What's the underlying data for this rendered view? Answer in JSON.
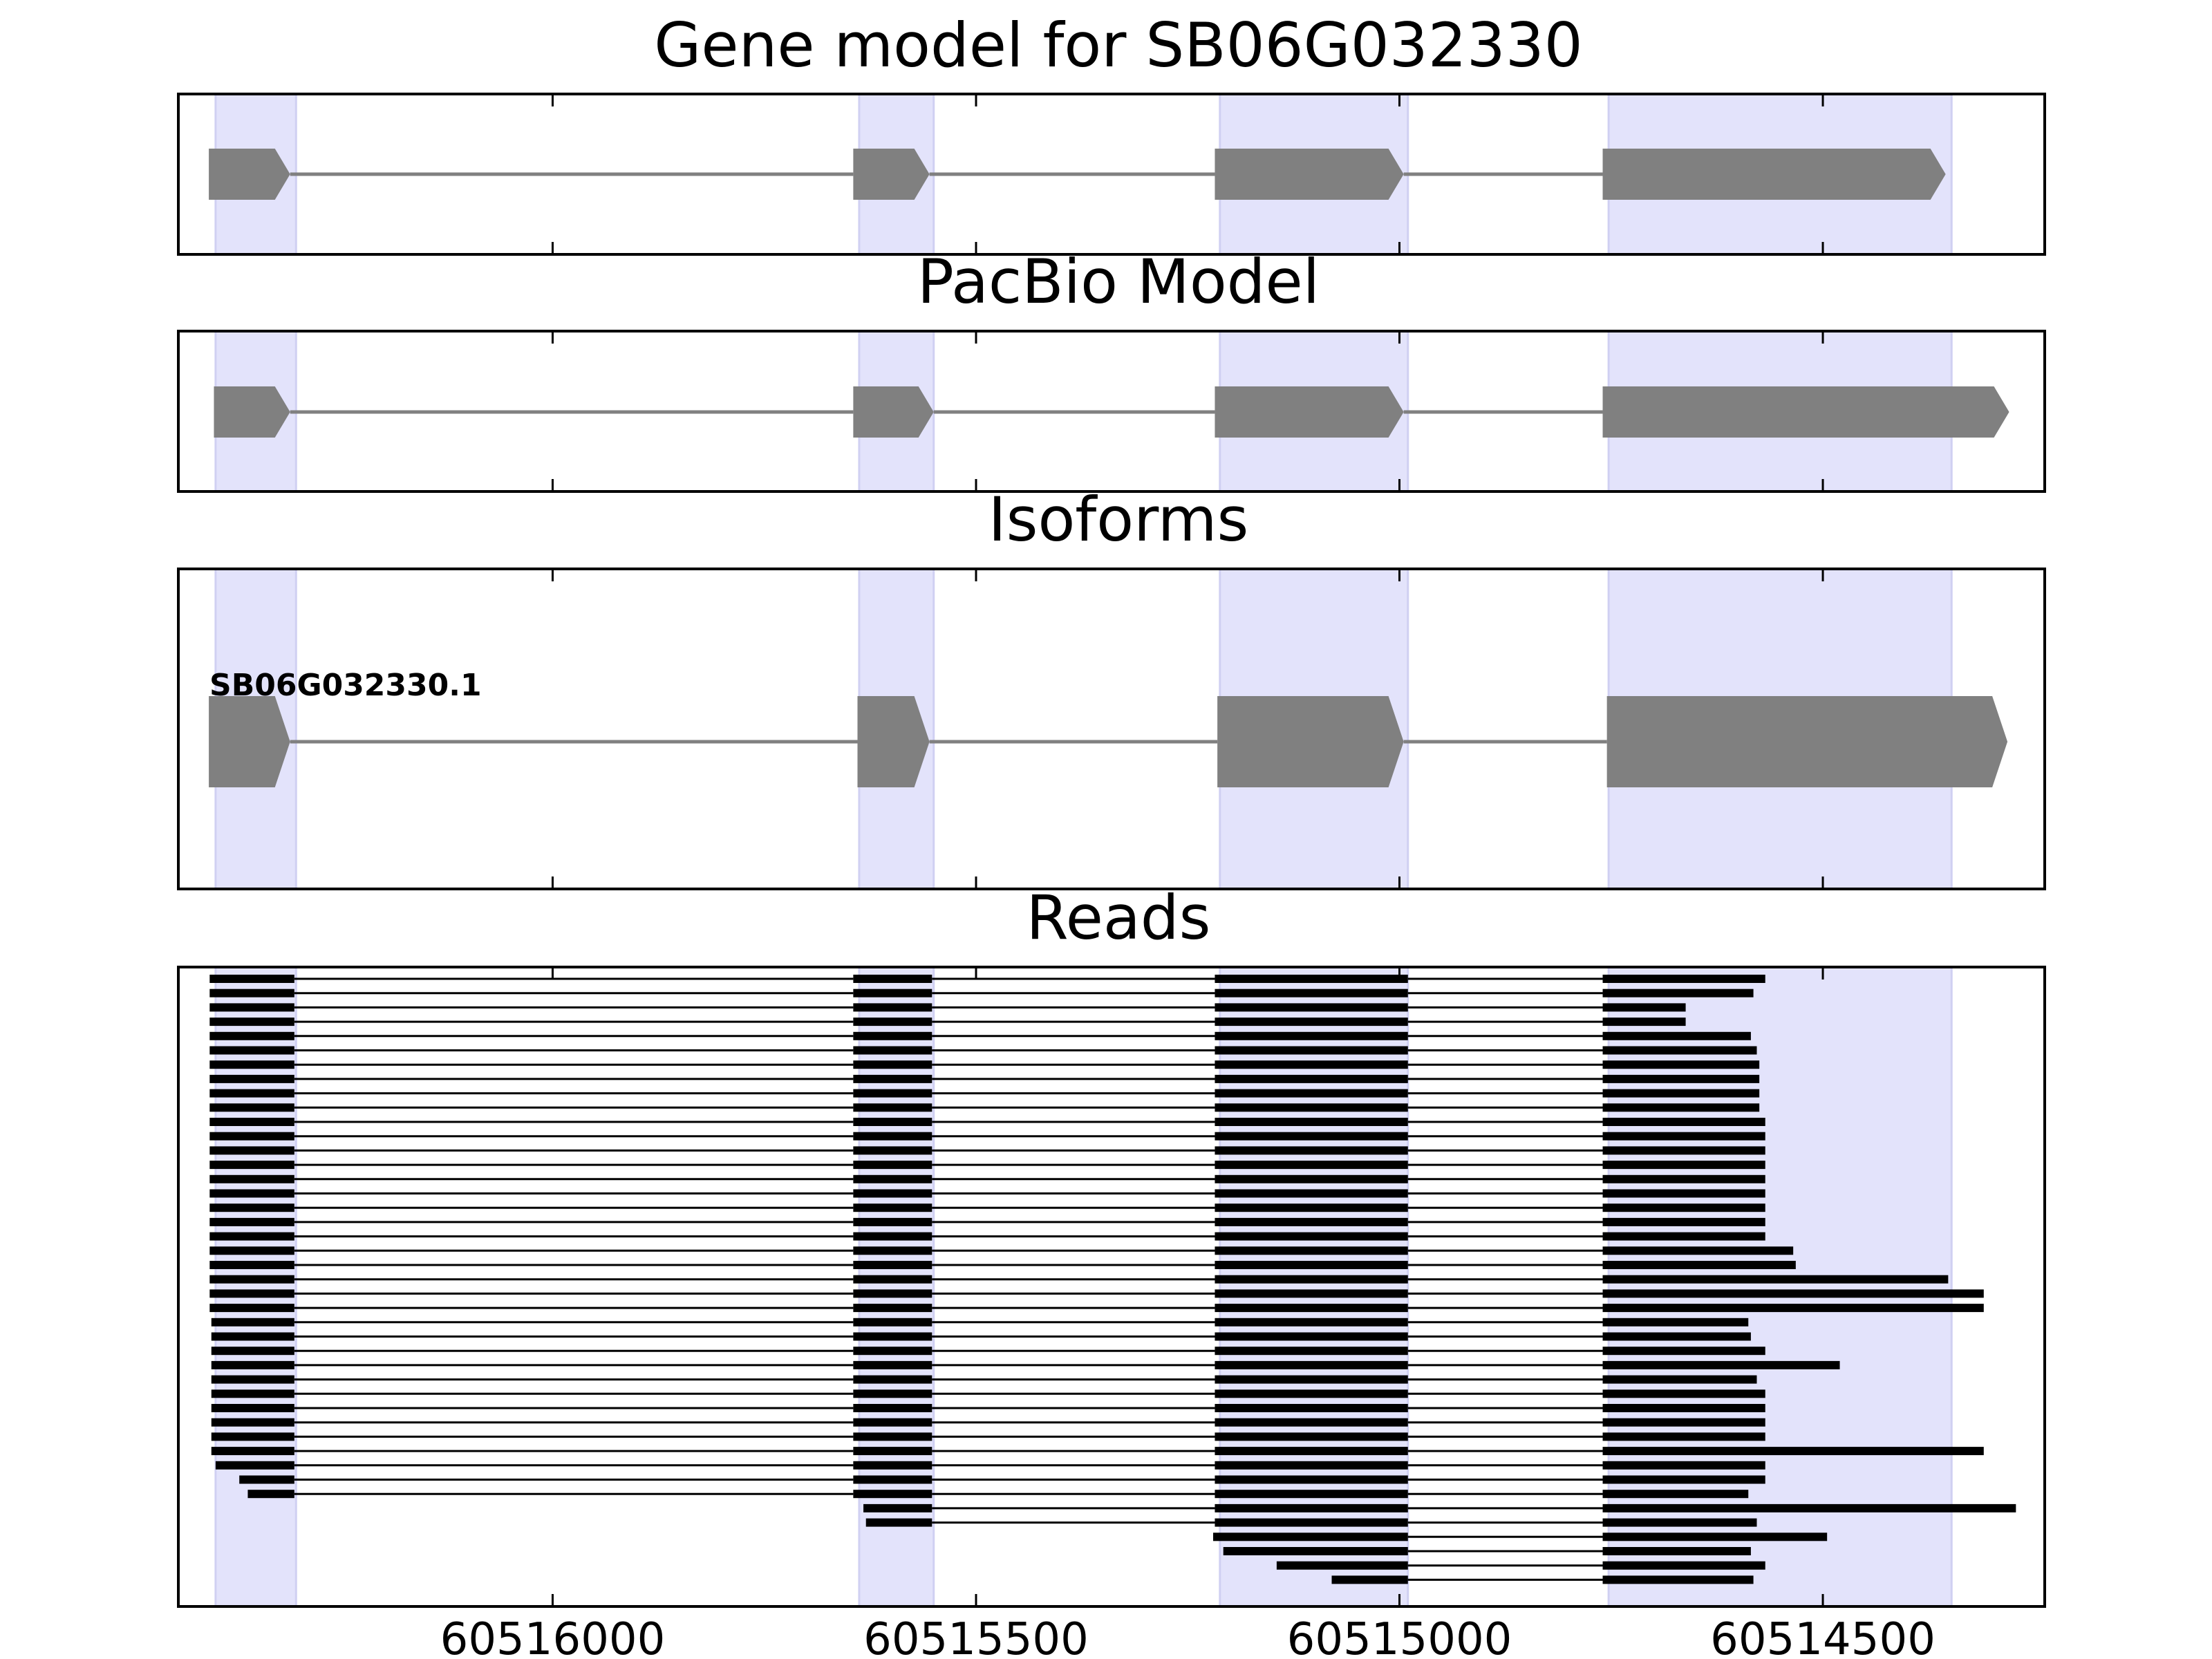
{
  "panels": [
    {
      "title": "Gene model for SB06G032330",
      "track": "gene-model",
      "exons": [
        [
          60516406,
          60516310
        ],
        [
          60515645,
          60515555
        ],
        [
          60515218,
          60514995
        ],
        [
          60514760,
          60514355
        ]
      ]
    },
    {
      "title": "PacBio Model",
      "track": "pacbio-model",
      "exons": [
        [
          60516400,
          60516310
        ],
        [
          60515645,
          60515550
        ],
        [
          60515218,
          60514995
        ],
        [
          60514760,
          60514280
        ]
      ]
    },
    {
      "title": "Isoforms",
      "track": "isoforms",
      "isoform_label": "SB06G032330.1",
      "exons": [
        [
          60516406,
          60516310
        ],
        [
          60515640,
          60515555
        ],
        [
          60515215,
          60514995
        ],
        [
          60514755,
          60514282
        ]
      ]
    },
    {
      "title": "Reads",
      "track": "reads"
    }
  ],
  "highlight_regions": [
    [
      60516398,
      60516303
    ],
    [
      60515638,
      60515550
    ],
    [
      60515212,
      60514990
    ],
    [
      60514753,
      60514348
    ]
  ],
  "x_axis": {
    "range": [
      60516442,
      60514238
    ],
    "tick_values": [
      60516000,
      60515500,
      60515000,
      60514500
    ],
    "tick_labels": [
      "60516000",
      "60515500",
      "60515000",
      "60514500"
    ]
  },
  "reads": [
    {
      "start": 60516405,
      "exon1_end": 60516305,
      "exon2": [
        60515645,
        60515552
      ],
      "exon3": [
        60515218,
        60514990
      ],
      "exon4_start": 60514760,
      "end": 60514568
    },
    {
      "start": 60516405,
      "exon1_end": 60516305,
      "exon2": [
        60515645,
        60515552
      ],
      "exon3": [
        60515218,
        60514990
      ],
      "exon4_start": 60514760,
      "end": 60514582
    },
    {
      "start": 60516405,
      "exon1_end": 60516305,
      "exon2": [
        60515645,
        60515552
      ],
      "exon3": [
        60515218,
        60514990
      ],
      "exon4_start": 60514760,
      "end": 60514662
    },
    {
      "start": 60516405,
      "exon1_end": 60516305,
      "exon2": [
        60515645,
        60515552
      ],
      "exon3": [
        60515218,
        60514990
      ],
      "exon4_start": 60514760,
      "end": 60514662
    },
    {
      "start": 60516405,
      "exon1_end": 60516305,
      "exon2": [
        60515645,
        60515552
      ],
      "exon3": [
        60515218,
        60514990
      ],
      "exon4_start": 60514760,
      "end": 60514585
    },
    {
      "start": 60516405,
      "exon1_end": 60516305,
      "exon2": [
        60515645,
        60515552
      ],
      "exon3": [
        60515218,
        60514990
      ],
      "exon4_start": 60514760,
      "end": 60514578
    },
    {
      "start": 60516405,
      "exon1_end": 60516305,
      "exon2": [
        60515645,
        60515552
      ],
      "exon3": [
        60515218,
        60514990
      ],
      "exon4_start": 60514760,
      "end": 60514575
    },
    {
      "start": 60516405,
      "exon1_end": 60516305,
      "exon2": [
        60515645,
        60515552
      ],
      "exon3": [
        60515218,
        60514990
      ],
      "exon4_start": 60514760,
      "end": 60514575
    },
    {
      "start": 60516405,
      "exon1_end": 60516305,
      "exon2": [
        60515645,
        60515552
      ],
      "exon3": [
        60515218,
        60514990
      ],
      "exon4_start": 60514760,
      "end": 60514575
    },
    {
      "start": 60516405,
      "exon1_end": 60516305,
      "exon2": [
        60515645,
        60515552
      ],
      "exon3": [
        60515218,
        60514990
      ],
      "exon4_start": 60514760,
      "end": 60514575
    },
    {
      "start": 60516405,
      "exon1_end": 60516305,
      "exon2": [
        60515645,
        60515552
      ],
      "exon3": [
        60515218,
        60514990
      ],
      "exon4_start": 60514760,
      "end": 60514568
    },
    {
      "start": 60516405,
      "exon1_end": 60516305,
      "exon2": [
        60515645,
        60515552
      ],
      "exon3": [
        60515218,
        60514990
      ],
      "exon4_start": 60514760,
      "end": 60514568
    },
    {
      "start": 60516405,
      "exon1_end": 60516305,
      "exon2": [
        60515645,
        60515552
      ],
      "exon3": [
        60515218,
        60514990
      ],
      "exon4_start": 60514760,
      "end": 60514568
    },
    {
      "start": 60516405,
      "exon1_end": 60516305,
      "exon2": [
        60515645,
        60515552
      ],
      "exon3": [
        60515218,
        60514990
      ],
      "exon4_start": 60514760,
      "end": 60514568
    },
    {
      "start": 60516405,
      "exon1_end": 60516305,
      "exon2": [
        60515645,
        60515552
      ],
      "exon3": [
        60515218,
        60514990
      ],
      "exon4_start": 60514760,
      "end": 60514568
    },
    {
      "start": 60516405,
      "exon1_end": 60516305,
      "exon2": [
        60515645,
        60515552
      ],
      "exon3": [
        60515218,
        60514990
      ],
      "exon4_start": 60514760,
      "end": 60514568
    },
    {
      "start": 60516405,
      "exon1_end": 60516305,
      "exon2": [
        60515645,
        60515552
      ],
      "exon3": [
        60515218,
        60514990
      ],
      "exon4_start": 60514760,
      "end": 60514568
    },
    {
      "start": 60516405,
      "exon1_end": 60516305,
      "exon2": [
        60515645,
        60515552
      ],
      "exon3": [
        60515218,
        60514990
      ],
      "exon4_start": 60514760,
      "end": 60514568
    },
    {
      "start": 60516405,
      "exon1_end": 60516305,
      "exon2": [
        60515645,
        60515552
      ],
      "exon3": [
        60515218,
        60514990
      ],
      "exon4_start": 60514760,
      "end": 60514568
    },
    {
      "start": 60516405,
      "exon1_end": 60516305,
      "exon2": [
        60515645,
        60515552
      ],
      "exon3": [
        60515218,
        60514990
      ],
      "exon4_start": 60514760,
      "end": 60514535
    },
    {
      "start": 60516405,
      "exon1_end": 60516305,
      "exon2": [
        60515645,
        60515552
      ],
      "exon3": [
        60515218,
        60514990
      ],
      "exon4_start": 60514760,
      "end": 60514532
    },
    {
      "start": 60516405,
      "exon1_end": 60516305,
      "exon2": [
        60515645,
        60515552
      ],
      "exon3": [
        60515218,
        60514990
      ],
      "exon4_start": 60514760,
      "end": 60514352
    },
    {
      "start": 60516405,
      "exon1_end": 60516305,
      "exon2": [
        60515645,
        60515552
      ],
      "exon3": [
        60515218,
        60514990
      ],
      "exon4_start": 60514760,
      "end": 60514310
    },
    {
      "start": 60516405,
      "exon1_end": 60516305,
      "exon2": [
        60515645,
        60515552
      ],
      "exon3": [
        60515218,
        60514990
      ],
      "exon4_start": 60514760,
      "end": 60514310
    },
    {
      "start": 60516403,
      "exon1_end": 60516305,
      "exon2": [
        60515645,
        60515552
      ],
      "exon3": [
        60515218,
        60514990
      ],
      "exon4_start": 60514760,
      "end": 60514588
    },
    {
      "start": 60516403,
      "exon1_end": 60516305,
      "exon2": [
        60515645,
        60515552
      ],
      "exon3": [
        60515218,
        60514990
      ],
      "exon4_start": 60514760,
      "end": 60514585
    },
    {
      "start": 60516403,
      "exon1_end": 60516305,
      "exon2": [
        60515645,
        60515552
      ],
      "exon3": [
        60515218,
        60514990
      ],
      "exon4_start": 60514760,
      "end": 60514568
    },
    {
      "start": 60516403,
      "exon1_end": 60516305,
      "exon2": [
        60515645,
        60515552
      ],
      "exon3": [
        60515218,
        60514990
      ],
      "exon4_start": 60514760,
      "end": 60514480
    },
    {
      "start": 60516403,
      "exon1_end": 60516305,
      "exon2": [
        60515645,
        60515552
      ],
      "exon3": [
        60515218,
        60514990
      ],
      "exon4_start": 60514760,
      "end": 60514578
    },
    {
      "start": 60516403,
      "exon1_end": 60516305,
      "exon2": [
        60515645,
        60515552
      ],
      "exon3": [
        60515218,
        60514990
      ],
      "exon4_start": 60514760,
      "end": 60514568
    },
    {
      "start": 60516403,
      "exon1_end": 60516305,
      "exon2": [
        60515645,
        60515552
      ],
      "exon3": [
        60515218,
        60514990
      ],
      "exon4_start": 60514760,
      "end": 60514568
    },
    {
      "start": 60516403,
      "exon1_end": 60516305,
      "exon2": [
        60515645,
        60515552
      ],
      "exon3": [
        60515218,
        60514990
      ],
      "exon4_start": 60514760,
      "end": 60514568
    },
    {
      "start": 60516403,
      "exon1_end": 60516305,
      "exon2": [
        60515645,
        60515552
      ],
      "exon3": [
        60515218,
        60514990
      ],
      "exon4_start": 60514760,
      "end": 60514568
    },
    {
      "start": 60516403,
      "exon1_end": 60516305,
      "exon2": [
        60515645,
        60515552
      ],
      "exon3": [
        60515218,
        60514990
      ],
      "exon4_start": 60514760,
      "end": 60514310
    },
    {
      "start": 60516398,
      "exon1_end": 60516305,
      "exon2": [
        60515645,
        60515552
      ],
      "exon3": [
        60515218,
        60514990
      ],
      "exon4_start": 60514760,
      "end": 60514568
    },
    {
      "start": 60516370,
      "exon1_end": 60516305,
      "exon2": [
        60515645,
        60515552
      ],
      "exon3": [
        60515218,
        60514990
      ],
      "exon4_start": 60514760,
      "end": 60514568
    },
    {
      "start": 60516360,
      "exon1_end": 60516305,
      "exon2": [
        60515645,
        60515552
      ],
      "exon3": [
        60515218,
        60514990
      ],
      "exon4_start": 60514760,
      "end": 60514588
    },
    {
      "start": 60515633,
      "exon2_end": 60515552,
      "exon3": [
        60515218,
        60514990
      ],
      "exon4_start": 60514760,
      "end": 60514272
    },
    {
      "start": 60515630,
      "exon2_end": 60515552,
      "exon3": [
        60515218,
        60514990
      ],
      "exon4_start": 60514760,
      "end": 60514578
    },
    {
      "start": 60515220,
      "exon3_end": 60514990,
      "exon4_start": 60514760,
      "end": 60514495
    },
    {
      "start": 60515208,
      "exon3_end": 60514990,
      "exon4_start": 60514760,
      "end": 60514585
    },
    {
      "start": 60515145,
      "exon3_end": 60514990,
      "exon4_start": 60514760,
      "end": 60514568
    },
    {
      "start": 60515080,
      "exon3_end": 60514990,
      "exon4_start": 60514760,
      "end": 60514582
    }
  ],
  "colors": {
    "highlight": "#e3e3fb",
    "highlight_edge": "#d0d0f2",
    "exon": "#808080",
    "read": "#000000",
    "frame": "#000000"
  }
}
